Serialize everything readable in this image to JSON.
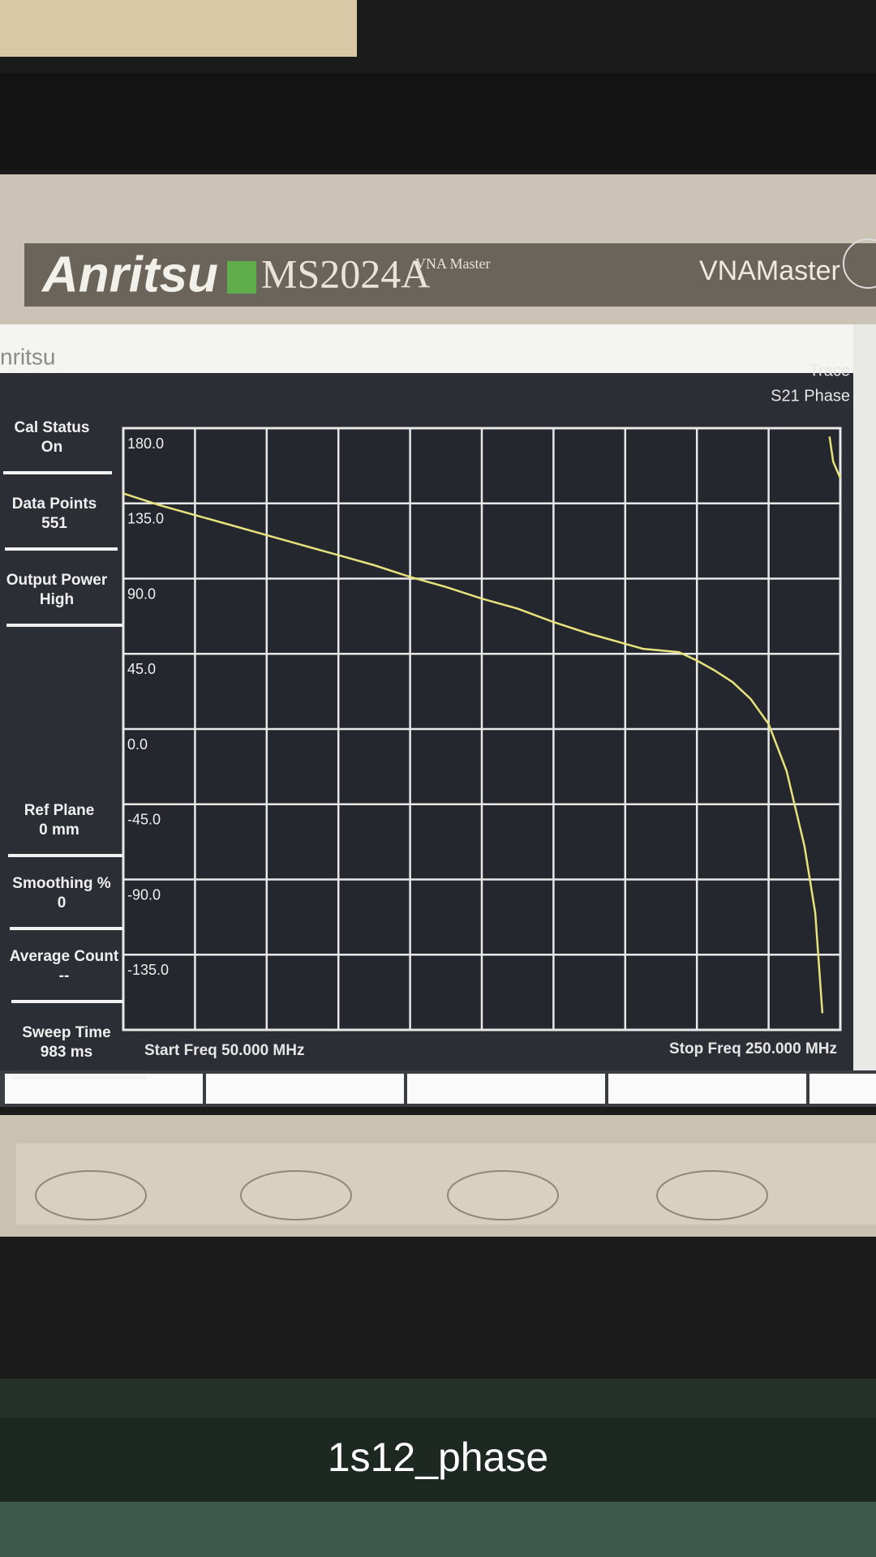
{
  "device": {
    "brand": "Anritsu",
    "model": "MS2024A",
    "model_sub": "VNA Master",
    "product": "VNAMaster",
    "screen_brand": "nritsu"
  },
  "sidebar": [
    {
      "label": "Cal Status",
      "value": "On"
    },
    {
      "label": "Data Points",
      "value": "551"
    },
    {
      "label": "Output Power",
      "value": "High"
    },
    {
      "label": "Ref Plane",
      "value": "0 mm"
    },
    {
      "label": "Smoothing %",
      "value": "0"
    },
    {
      "label": "Average Count",
      "value": "--"
    },
    {
      "label": "Sweep Time",
      "value": "983 ms"
    }
  ],
  "chart_data": {
    "type": "line",
    "title_label": "Trace",
    "title": "S21 Phase",
    "start_label": "Start Freq 50.000 MHz",
    "stop_label": "Stop Freq 250.000 MHz",
    "x": [
      50,
      60,
      70,
      80,
      90,
      100,
      110,
      120,
      130,
      140,
      150,
      160,
      170,
      180,
      190,
      195,
      200,
      205,
      210,
      215,
      220,
      225,
      230,
      235,
      240,
      243,
      245,
      246,
      247,
      248,
      250
    ],
    "series": [
      {
        "color": "#e8e27c",
        "values": [
          141,
          134,
          128,
          122,
          116,
          110,
          104,
          98,
          91,
          85,
          78,
          72,
          64,
          57,
          51,
          48,
          47,
          46,
          41,
          35,
          28,
          18,
          3,
          -25,
          -70,
          -110,
          -170,
          null,
          175,
          160,
          150
        ]
      }
    ],
    "xlim": [
      50,
      250
    ],
    "ylim": [
      -180,
      180
    ],
    "xticks": [
      50,
      70,
      90,
      110,
      130,
      150,
      170,
      190,
      210,
      230,
      250
    ],
    "yticks": [
      {
        "value": 180,
        "label": "180.0"
      },
      {
        "value": 135,
        "label": "135.0"
      },
      {
        "value": 90,
        "label": "90.0"
      },
      {
        "value": 45,
        "label": "45.0"
      },
      {
        "value": 0,
        "label": "0.0"
      },
      {
        "value": -45,
        "label": "-45.0"
      },
      {
        "value": -90,
        "label": "-90.0"
      },
      {
        "value": -135,
        "label": "-135.0"
      }
    ],
    "grid": true
  },
  "caption": "1s12_phase"
}
